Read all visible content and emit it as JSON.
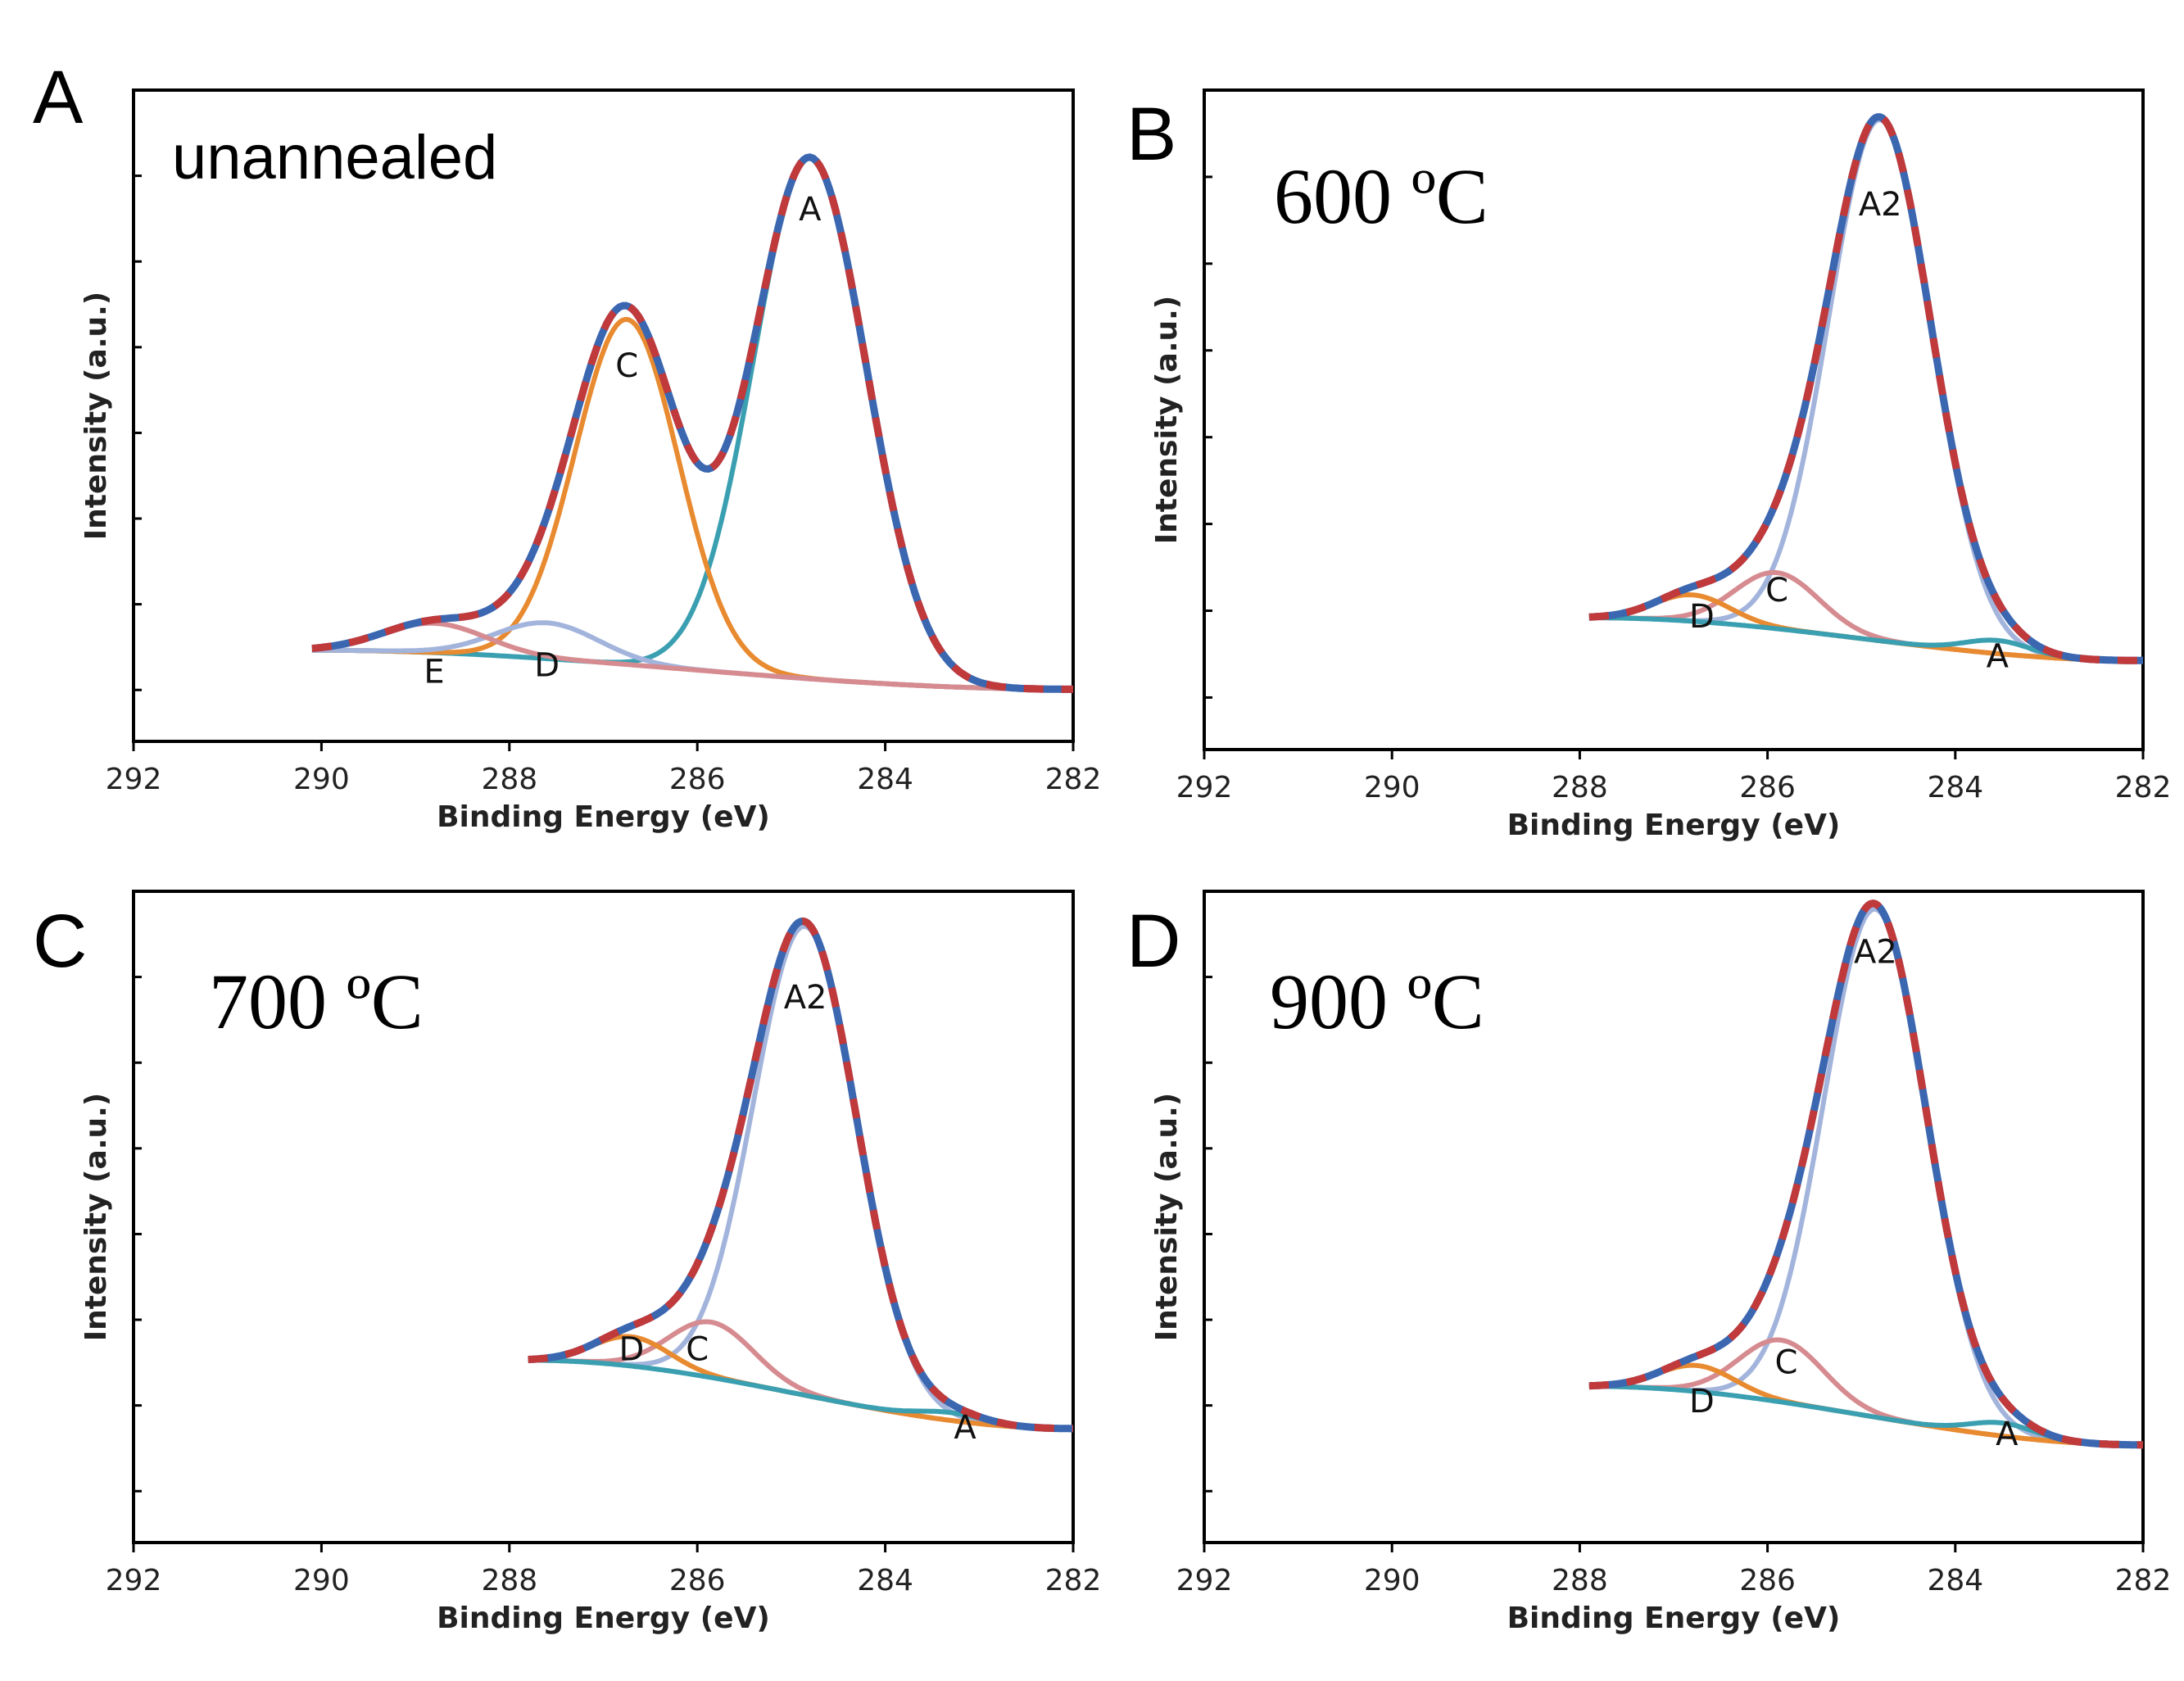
{
  "chart_data": [
    {
      "type": "line",
      "panel": "A",
      "condition": "unannealed",
      "xlabel": "Binding Energy (eV)",
      "ylabel": "Intensity (a.u.)",
      "xlim": [
        292,
        282
      ],
      "x_ticks": [
        "292",
        "290",
        "288",
        "286",
        "284",
        "282"
      ],
      "fit_range": [
        290.1,
        282
      ],
      "background": {
        "high": 0.04,
        "low": -0.02
      },
      "components": [
        {
          "name": "A",
          "center": 284.8,
          "height": 0.8,
          "width": 0.6,
          "color": "#3a9fb0"
        },
        {
          "name": "C",
          "center": 286.75,
          "height": 0.53,
          "width": 0.55,
          "color": "#e88a30"
        },
        {
          "name": "D",
          "center": 287.6,
          "height": 0.055,
          "width": 0.55,
          "color": "#a3b4dc"
        },
        {
          "name": "E",
          "center": 288.8,
          "height": 0.045,
          "width": 0.55,
          "color": "#d68b90"
        }
      ],
      "peak_labels": [
        {
          "text": "A",
          "x": 284.8,
          "y": 0.7
        },
        {
          "text": "C",
          "x": 286.75,
          "y": 0.46
        },
        {
          "text": "D",
          "x": 287.6,
          "y": 0.0
        },
        {
          "text": "E",
          "x": 288.8,
          "y": -0.01
        }
      ]
    },
    {
      "type": "line",
      "panel": "B",
      "condition": "600 ºC",
      "xlabel": "Binding Energy (eV)",
      "ylabel": "Intensity (a.u.)",
      "xlim": [
        292,
        282
      ],
      "x_ticks": [
        "292",
        "290",
        "288",
        "286",
        "284",
        "282"
      ],
      "fit_range": [
        287.9,
        282
      ],
      "background": {
        "high": 0.1,
        "low": 0.035
      },
      "components": [
        {
          "name": "A2",
          "center": 284.8,
          "height": 0.79,
          "width": 0.55,
          "color": "#a3b4dc"
        },
        {
          "name": "C",
          "center": 285.9,
          "height": 0.085,
          "width": 0.45,
          "color": "#d68b90"
        },
        {
          "name": "D",
          "center": 286.8,
          "height": 0.04,
          "width": 0.4,
          "color": "#e88a30"
        },
        {
          "name": "A",
          "center": 283.55,
          "height": 0.02,
          "width": 0.35,
          "color": "#3a9fb0"
        }
      ],
      "peak_labels": [
        {
          "text": "A2",
          "x": 284.8,
          "y": 0.71
        },
        {
          "text": "C",
          "x": 285.9,
          "y": 0.125
        },
        {
          "text": "D",
          "x": 286.7,
          "y": 0.085
        },
        {
          "text": "A",
          "x": 283.55,
          "y": 0.025
        }
      ]
    },
    {
      "type": "line",
      "panel": "C",
      "condition": "700 ºC",
      "xlabel": "Binding Energy (eV)",
      "ylabel": "Intensity (a.u.)",
      "xlim": [
        292,
        282
      ],
      "x_ticks": [
        "292",
        "290",
        "288",
        "286",
        "284",
        "282"
      ],
      "fit_range": [
        287.8,
        282
      ],
      "background": {
        "high": 0.18,
        "low": 0.075
      },
      "components": [
        {
          "name": "A2",
          "center": 284.85,
          "height": 0.72,
          "width": 0.55,
          "color": "#a3b4dc"
        },
        {
          "name": "C",
          "center": 285.85,
          "height": 0.085,
          "width": 0.45,
          "color": "#d68b90"
        },
        {
          "name": "D",
          "center": 286.7,
          "height": 0.045,
          "width": 0.4,
          "color": "#e88a30"
        },
        {
          "name": "A",
          "center": 283.3,
          "height": 0.012,
          "width": 0.35,
          "color": "#3a9fb0"
        }
      ],
      "peak_labels": [
        {
          "text": "A2",
          "x": 284.85,
          "y": 0.72
        },
        {
          "text": "C",
          "x": 286.0,
          "y": 0.18
        },
        {
          "text": "D",
          "x": 286.7,
          "y": 0.18
        },
        {
          "text": "A",
          "x": 283.15,
          "y": 0.06
        }
      ]
    },
    {
      "type": "line",
      "panel": "D",
      "condition": "900 ºC",
      "xlabel": "Binding Energy (eV)",
      "ylabel": "Intensity (a.u.)",
      "xlim": [
        292,
        282
      ],
      "x_ticks": [
        "292",
        "290",
        "288",
        "286",
        "284",
        "282"
      ],
      "fit_range": [
        287.9,
        282
      ],
      "background": {
        "high": 0.14,
        "low": 0.05
      },
      "components": [
        {
          "name": "A2",
          "center": 284.85,
          "height": 0.78,
          "width": 0.55,
          "color": "#a3b4dc"
        },
        {
          "name": "C",
          "center": 285.85,
          "height": 0.095,
          "width": 0.45,
          "color": "#d68b90"
        },
        {
          "name": "D",
          "center": 286.75,
          "height": 0.04,
          "width": 0.4,
          "color": "#e88a30"
        },
        {
          "name": "A",
          "center": 283.5,
          "height": 0.02,
          "width": 0.35,
          "color": "#3a9fb0"
        }
      ],
      "peak_labels": [
        {
          "text": "A2",
          "x": 284.85,
          "y": 0.79
        },
        {
          "text": "C",
          "x": 285.8,
          "y": 0.16
        },
        {
          "text": "D",
          "x": 286.7,
          "y": 0.1
        },
        {
          "text": "A",
          "x": 283.45,
          "y": 0.05
        }
      ]
    }
  ],
  "colors": {
    "envelope_solid": "#3b66b0",
    "envelope_dash": "#c0393b",
    "background_line": "#3a9fb0",
    "frame": "#000000"
  }
}
